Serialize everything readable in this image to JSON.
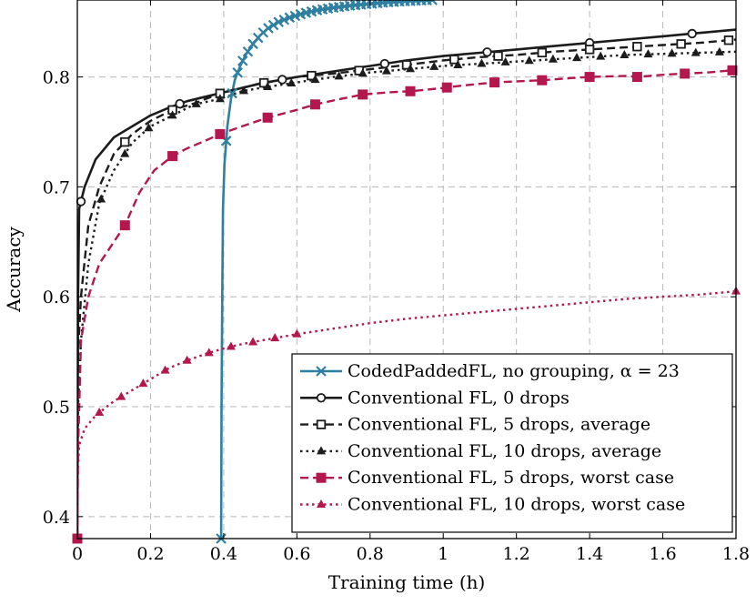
{
  "chart_data": {
    "type": "line",
    "xlabel": "Training time (h)",
    "ylabel": "Accuracy",
    "xlim": [
      0,
      1.8
    ],
    "ylim": [
      0.38,
      0.87
    ],
    "x_ticks": [
      0,
      0.2,
      0.4,
      0.6,
      0.8,
      1,
      1.2,
      1.4,
      1.6,
      1.8
    ],
    "x_tick_labels": [
      "0",
      "0.2",
      "0.4",
      "0.6",
      "0.8",
      "1",
      "1.2",
      "1.4",
      "1.6",
      "1.8"
    ],
    "y_ticks": [
      0.4,
      0.5,
      0.6,
      0.7,
      0.8
    ],
    "y_tick_labels": [
      "0.4",
      "0.5",
      "0.6",
      "0.7",
      "0.8"
    ],
    "grid": true,
    "legend_position": "bottom-right",
    "series": [
      {
        "name": "CodedPaddedFL, no grouping, α = 23",
        "color": "#2e7fa0",
        "line_style": "solid",
        "marker": "x",
        "points": [
          [
            0.393,
            0.38
          ],
          [
            0.394,
            0.5
          ],
          [
            0.396,
            0.6
          ],
          [
            0.398,
            0.68
          ],
          [
            0.402,
            0.72
          ],
          [
            0.41,
            0.755
          ],
          [
            0.42,
            0.78
          ],
          [
            0.43,
            0.797
          ],
          [
            0.445,
            0.81
          ],
          [
            0.46,
            0.82
          ],
          [
            0.48,
            0.83
          ],
          [
            0.5,
            0.838
          ],
          [
            0.52,
            0.844
          ],
          [
            0.55,
            0.85
          ],
          [
            0.58,
            0.854
          ],
          [
            0.62,
            0.858
          ],
          [
            0.66,
            0.861
          ],
          [
            0.7,
            0.863
          ],
          [
            0.75,
            0.865
          ],
          [
            0.8,
            0.8665
          ],
          [
            0.85,
            0.868
          ],
          [
            0.9,
            0.869
          ],
          [
            0.97,
            0.87
          ]
        ],
        "marker_x": [
          0.393,
          0.407,
          0.423,
          0.438,
          0.452,
          0.466,
          0.48,
          0.494,
          0.508,
          0.522,
          0.536,
          0.55,
          0.565,
          0.58,
          0.595,
          0.61,
          0.625,
          0.64,
          0.655,
          0.67,
          0.685,
          0.7,
          0.715,
          0.73,
          0.745,
          0.76,
          0.775,
          0.79,
          0.805,
          0.82,
          0.835,
          0.85,
          0.865,
          0.88,
          0.895,
          0.91,
          0.925,
          0.94,
          0.955,
          0.97
        ]
      },
      {
        "name": "Conventional FL, 0 drops",
        "color": "#1c1c1c",
        "line_style": "solid",
        "marker": "circle-open",
        "points": [
          [
            0,
            0.38
          ],
          [
            0.002,
            0.6
          ],
          [
            0.005,
            0.68
          ],
          [
            0.02,
            0.7
          ],
          [
            0.05,
            0.725
          ],
          [
            0.1,
            0.745
          ],
          [
            0.15,
            0.755
          ],
          [
            0.2,
            0.765
          ],
          [
            0.25,
            0.772
          ],
          [
            0.3,
            0.778
          ],
          [
            0.35,
            0.782
          ],
          [
            0.4,
            0.786
          ],
          [
            0.5,
            0.794
          ],
          [
            0.6,
            0.8
          ],
          [
            0.7,
            0.805
          ],
          [
            0.8,
            0.81
          ],
          [
            0.9,
            0.815
          ],
          [
            1.0,
            0.819
          ],
          [
            1.1,
            0.822
          ],
          [
            1.2,
            0.825
          ],
          [
            1.3,
            0.828
          ],
          [
            1.4,
            0.831
          ],
          [
            1.5,
            0.834
          ],
          [
            1.6,
            0.837
          ],
          [
            1.7,
            0.84
          ],
          [
            1.8,
            0.843
          ]
        ],
        "marker_x": [
          0.01,
          0.28,
          0.56,
          0.84,
          1.12,
          1.4,
          1.68
        ]
      },
      {
        "name": "Conventional FL, 5 drops, average",
        "color": "#1c1c1c",
        "line_style": "dashed",
        "marker": "square-open",
        "points": [
          [
            0,
            0.38
          ],
          [
            0.002,
            0.55
          ],
          [
            0.01,
            0.6
          ],
          [
            0.03,
            0.665
          ],
          [
            0.06,
            0.7
          ],
          [
            0.1,
            0.73
          ],
          [
            0.15,
            0.748
          ],
          [
            0.2,
            0.76
          ],
          [
            0.26,
            0.77
          ],
          [
            0.32,
            0.776
          ],
          [
            0.39,
            0.785
          ],
          [
            0.45,
            0.79
          ],
          [
            0.5,
            0.794
          ],
          [
            0.6,
            0.8
          ],
          [
            0.7,
            0.803
          ],
          [
            0.8,
            0.807
          ],
          [
            0.9,
            0.811
          ],
          [
            1.0,
            0.815
          ],
          [
            1.1,
            0.818
          ],
          [
            1.2,
            0.82
          ],
          [
            1.3,
            0.823
          ],
          [
            1.4,
            0.825
          ],
          [
            1.5,
            0.827
          ],
          [
            1.6,
            0.829
          ],
          [
            1.7,
            0.831
          ],
          [
            1.8,
            0.834
          ]
        ],
        "marker_x": [
          0,
          0.13,
          0.26,
          0.39,
          0.51,
          0.64,
          0.77,
          0.9,
          1.03,
          1.15,
          1.27,
          1.4,
          1.53,
          1.65,
          1.78
        ]
      },
      {
        "name": "Conventional FL, 10 drops, average",
        "color": "#1c1c1c",
        "line_style": "dotted",
        "marker": "triangle",
        "points": [
          [
            0,
            0.38
          ],
          [
            0.002,
            0.5
          ],
          [
            0.01,
            0.56
          ],
          [
            0.03,
            0.63
          ],
          [
            0.06,
            0.685
          ],
          [
            0.1,
            0.715
          ],
          [
            0.15,
            0.74
          ],
          [
            0.2,
            0.755
          ],
          [
            0.26,
            0.765
          ],
          [
            0.32,
            0.775
          ],
          [
            0.39,
            0.78
          ],
          [
            0.45,
            0.787
          ],
          [
            0.5,
            0.79
          ],
          [
            0.6,
            0.795
          ],
          [
            0.7,
            0.8
          ],
          [
            0.8,
            0.804
          ],
          [
            0.9,
            0.807
          ],
          [
            1.0,
            0.81
          ],
          [
            1.1,
            0.812
          ],
          [
            1.2,
            0.814
          ],
          [
            1.3,
            0.816
          ],
          [
            1.4,
            0.818
          ],
          [
            1.5,
            0.82
          ],
          [
            1.6,
            0.821
          ],
          [
            1.7,
            0.822
          ],
          [
            1.8,
            0.823
          ]
        ],
        "marker_x": [
          0,
          0.065,
          0.13,
          0.195,
          0.26,
          0.325,
          0.39,
          0.455,
          0.52,
          0.585,
          0.65,
          0.715,
          0.78,
          0.845,
          0.91,
          0.975,
          1.04,
          1.105,
          1.17,
          1.235,
          1.3,
          1.365,
          1.43,
          1.495,
          1.56,
          1.625,
          1.69,
          1.755
        ]
      },
      {
        "name": "Conventional FL, 5 drops, worst case",
        "color": "#b3174d",
        "line_style": "dashed",
        "marker": "square",
        "points": [
          [
            0,
            0.38
          ],
          [
            0.002,
            0.46
          ],
          [
            0.01,
            0.56
          ],
          [
            0.03,
            0.6
          ],
          [
            0.06,
            0.63
          ],
          [
            0.1,
            0.65
          ],
          [
            0.13,
            0.665
          ],
          [
            0.17,
            0.695
          ],
          [
            0.21,
            0.715
          ],
          [
            0.26,
            0.728
          ],
          [
            0.3,
            0.735
          ],
          [
            0.35,
            0.742
          ],
          [
            0.39,
            0.748
          ],
          [
            0.45,
            0.755
          ],
          [
            0.52,
            0.763
          ],
          [
            0.6,
            0.77
          ],
          [
            0.65,
            0.775
          ],
          [
            0.72,
            0.78
          ],
          [
            0.78,
            0.784
          ],
          [
            0.85,
            0.786
          ],
          [
            0.91,
            0.787
          ],
          [
            1.0,
            0.79
          ],
          [
            1.05,
            0.792
          ],
          [
            1.14,
            0.795
          ],
          [
            1.2,
            0.796
          ],
          [
            1.27,
            0.797
          ],
          [
            1.35,
            0.799
          ],
          [
            1.4,
            0.8
          ],
          [
            1.5,
            0.801
          ],
          [
            1.53,
            0.8
          ],
          [
            1.6,
            0.802
          ],
          [
            1.66,
            0.803
          ],
          [
            1.72,
            0.804
          ],
          [
            1.79,
            0.806
          ]
        ],
        "marker_x": [
          0,
          0.13,
          0.26,
          0.39,
          0.52,
          0.65,
          0.78,
          0.91,
          1.01,
          1.14,
          1.27,
          1.4,
          1.53,
          1.66,
          1.79
        ]
      },
      {
        "name": "Conventional FL, 10 drops, worst case",
        "color": "#b3174d",
        "line_style": "dotted",
        "marker": "triangle",
        "points": [
          [
            0,
            0.38
          ],
          [
            0.001,
            0.44
          ],
          [
            0.005,
            0.465
          ],
          [
            0.02,
            0.48
          ],
          [
            0.05,
            0.492
          ],
          [
            0.1,
            0.505
          ],
          [
            0.15,
            0.515
          ],
          [
            0.2,
            0.525
          ],
          [
            0.25,
            0.535
          ],
          [
            0.3,
            0.542
          ],
          [
            0.35,
            0.548
          ],
          [
            0.4,
            0.553
          ],
          [
            0.45,
            0.557
          ],
          [
            0.5,
            0.56
          ],
          [
            0.55,
            0.563
          ],
          [
            0.6,
            0.566
          ],
          [
            0.7,
            0.571
          ],
          [
            0.8,
            0.576
          ],
          [
            0.9,
            0.58
          ],
          [
            1.0,
            0.583
          ],
          [
            1.1,
            0.586
          ],
          [
            1.2,
            0.589
          ],
          [
            1.3,
            0.592
          ],
          [
            1.4,
            0.595
          ],
          [
            1.5,
            0.598
          ],
          [
            1.6,
            0.6
          ],
          [
            1.7,
            0.602
          ],
          [
            1.8,
            0.605
          ]
        ],
        "marker_x": [
          0,
          0.06,
          0.12,
          0.18,
          0.24,
          0.3,
          0.36,
          0.42,
          0.48,
          0.54,
          0.6,
          1.8
        ]
      }
    ]
  }
}
